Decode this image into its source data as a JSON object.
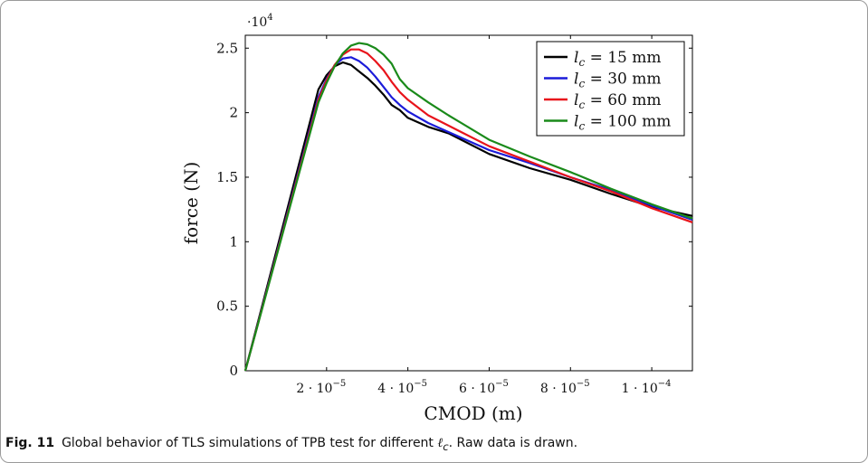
{
  "chart_data": {
    "type": "line",
    "xlabel": "CMOD (m)",
    "ylabel": "force (N)",
    "y_multiplier_label": "·10",
    "y_multiplier_exp": "4",
    "xlim": [
      0,
      0.00011
    ],
    "ylim": [
      0,
      26000
    ],
    "x_ticks": [
      2e-05,
      4e-05,
      6e-05,
      8e-05,
      0.0001
    ],
    "x_tick_labels": [
      "2 · 10",
      "4 · 10",
      "6 · 10",
      "8 · 10",
      "1 · 10"
    ],
    "x_tick_exps": [
      "−5",
      "−5",
      "−5",
      "−5",
      "−4"
    ],
    "y_ticks": [
      0,
      5000,
      10000,
      15000,
      20000,
      25000
    ],
    "y_tick_labels": [
      "0",
      "0.5",
      "1",
      "1.5",
      "2",
      "2.5"
    ],
    "legend_position": "top-right",
    "grid": false,
    "series": [
      {
        "name": "l_c = 15 mm",
        "legend_prefix": "l",
        "legend_sub": "c",
        "legend_suffix": " = 15 mm",
        "color": "#000000",
        "x": [
          0,
          1.8e-05,
          2e-05,
          2.2e-05,
          2.4e-05,
          2.6e-05,
          2.8e-05,
          3e-05,
          3.2e-05,
          3.4e-05,
          3.6e-05,
          3.8e-05,
          4e-05,
          4.5e-05,
          5e-05,
          6e-05,
          7e-05,
          8e-05,
          9e-05,
          0.0001,
          0.00011
        ],
        "y": [
          0,
          21800,
          22900,
          23600,
          23900,
          23700,
          23200,
          22700,
          22100,
          21400,
          20600,
          20200,
          19600,
          18900,
          18400,
          16800,
          15700,
          14800,
          13700,
          12700,
          12000
        ]
      },
      {
        "name": "l_c = 30 mm",
        "legend_prefix": "l",
        "legend_sub": "c",
        "legend_suffix": " = 30 mm",
        "color": "#1b1bd9",
        "x": [
          0,
          1.8e-05,
          2e-05,
          2.2e-05,
          2.4e-05,
          2.6e-05,
          2.8e-05,
          3e-05,
          3.2e-05,
          3.4e-05,
          3.6e-05,
          3.8e-05,
          4e-05,
          4.5e-05,
          5e-05,
          6e-05,
          7e-05,
          8e-05,
          9e-05,
          0.0001,
          0.00011
        ],
        "y": [
          0,
          21200,
          22600,
          23700,
          24200,
          24300,
          24000,
          23500,
          22800,
          22000,
          21200,
          20600,
          20100,
          19200,
          18500,
          17100,
          16100,
          15000,
          14000,
          12800,
          11700
        ]
      },
      {
        "name": "l_c = 60 mm",
        "legend_prefix": "l",
        "legend_sub": "c",
        "legend_suffix": " = 60 mm",
        "color": "#e8141b",
        "x": [
          0,
          1.8e-05,
          2e-05,
          2.2e-05,
          2.4e-05,
          2.6e-05,
          2.8e-05,
          3e-05,
          3.2e-05,
          3.4e-05,
          3.6e-05,
          3.8e-05,
          4e-05,
          4.5e-05,
          5e-05,
          6e-05,
          7e-05,
          8e-05,
          9e-05,
          0.0001,
          0.00011
        ],
        "y": [
          0,
          21000,
          22500,
          23700,
          24500,
          24900,
          24900,
          24600,
          24000,
          23300,
          22400,
          21600,
          21000,
          19800,
          19000,
          17400,
          16200,
          15000,
          13900,
          12600,
          11500
        ]
      },
      {
        "name": "l_c = 100 mm",
        "legend_prefix": "l",
        "legend_sub": "c",
        "legend_suffix": " = 100 mm",
        "color": "#1a8a1a",
        "x": [
          0,
          1.8e-05,
          2e-05,
          2.2e-05,
          2.4e-05,
          2.6e-05,
          2.8e-05,
          3e-05,
          3.2e-05,
          3.4e-05,
          3.6e-05,
          3.75e-05,
          3.8e-05,
          4e-05,
          4.5e-05,
          5e-05,
          6e-05,
          7e-05,
          8e-05,
          9e-05,
          0.0001,
          0.00011
        ],
        "y": [
          0,
          20800,
          22300,
          23600,
          24600,
          25200,
          25400,
          25300,
          25000,
          24500,
          23800,
          22900,
          22600,
          21900,
          20800,
          19800,
          17900,
          16600,
          15400,
          14100,
          12900,
          11800
        ]
      }
    ]
  },
  "caption": {
    "label": "Fig. 11",
    "text_before": "Global behavior of TLS simulations of TPB test for different ",
    "symbol": "ℓ",
    "symbol_sub": "c",
    "text_after": ". Raw data is drawn."
  }
}
